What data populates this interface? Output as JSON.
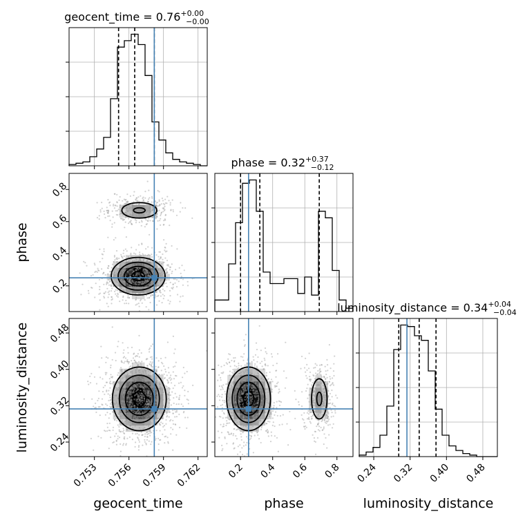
{
  "colors": {
    "truth": "#4682b4",
    "hist": "#000000",
    "grid": "#b0b0b0",
    "density": "#000000"
  },
  "chart_data": {
    "type": "corner",
    "parameters": [
      {
        "name": "geocent_time",
        "xlabel": "geocent_time",
        "title_main": "geocent_time = 0.76",
        "title_plus": "+0.00",
        "title_minus": "−0.00",
        "ticks": [
          "0.753",
          "0.756",
          "0.759",
          "0.762"
        ],
        "tick_values": [
          0.753,
          0.756,
          0.759,
          0.762
        ],
        "range": [
          0.7508,
          0.7628
        ],
        "truth": 0.7582,
        "quantiles": [
          0.7551,
          0.7565,
          0.7582
        ],
        "hist_edges_start": 0.7508,
        "hist_bin_width": 0.0006,
        "hist_counts": [
          1,
          2,
          3,
          7,
          13,
          22,
          52,
          92,
          97,
          102,
          94,
          70,
          34,
          20,
          10,
          5,
          3,
          2,
          1,
          0
        ]
      },
      {
        "name": "phase",
        "xlabel": "phase",
        "ylabel": "phase",
        "title_main": "phase = 0.32",
        "title_plus": "+0.37",
        "title_minus": "−0.12",
        "ticks": [
          "0.2",
          "0.4",
          "0.6",
          "0.8"
        ],
        "tick_values": [
          0.2,
          0.4,
          0.6,
          0.8
        ],
        "range": [
          0.04,
          0.9
        ],
        "truth": 0.25,
        "quantiles": [
          0.2,
          0.32,
          0.69
        ],
        "hist_edges_start": 0.04,
        "hist_bin_width": 0.043,
        "hist_counts": [
          7,
          7,
          29,
          54,
          78,
          80,
          61,
          24,
          17,
          17,
          20,
          20,
          11,
          21,
          10,
          61,
          57,
          25,
          7,
          2
        ]
      },
      {
        "name": "luminosity_distance",
        "xlabel": "luminosity_distance",
        "ylabel": "luminosity_distance",
        "title_main": "luminosity_distance = 0.34",
        "title_plus": "+0.04",
        "title_minus": "−0.04",
        "ticks": [
          "0.24",
          "0.32",
          "0.40",
          "0.48"
        ],
        "tick_values": [
          0.24,
          0.32,
          0.4,
          0.48
        ],
        "range": [
          0.208,
          0.512
        ],
        "truth": 0.313,
        "quantiles": [
          0.295,
          0.34,
          0.377
        ],
        "hist_edges_start": 0.208,
        "hist_bin_width": 0.0152,
        "hist_counts": [
          1,
          3,
          6,
          14,
          33,
          70,
          86,
          85,
          79,
          76,
          56,
          31,
          14,
          7,
          4,
          2,
          1,
          0,
          0,
          0
        ]
      }
    ],
    "pairs": [
      {
        "x": "geocent_time",
        "y": "phase",
        "modes": [
          {
            "x": 0.7568,
            "y": 0.26,
            "sx": 0.0012,
            "sy": 0.06,
            "w": 0.72
          },
          {
            "x": 0.7569,
            "y": 0.67,
            "sx": 0.0011,
            "sy": 0.035,
            "w": 0.28
          }
        ],
        "levels": [
          0.9,
          0.6,
          0.35,
          0.15
        ]
      },
      {
        "x": "geocent_time",
        "y": "luminosity_distance",
        "modes": [
          {
            "x": 0.7569,
            "y": 0.335,
            "sx": 0.0012,
            "sy": 0.036,
            "w": 1.0
          }
        ],
        "levels": [
          0.9,
          0.6,
          0.35,
          0.15
        ]
      },
      {
        "x": "phase",
        "y": "luminosity_distance",
        "modes": [
          {
            "x": 0.25,
            "y": 0.335,
            "sx": 0.07,
            "sy": 0.036,
            "w": 0.72
          },
          {
            "x": 0.69,
            "y": 0.335,
            "sx": 0.035,
            "sy": 0.032,
            "w": 0.28
          }
        ],
        "levels": [
          0.9,
          0.6,
          0.35,
          0.15
        ]
      }
    ],
    "grid": true
  }
}
